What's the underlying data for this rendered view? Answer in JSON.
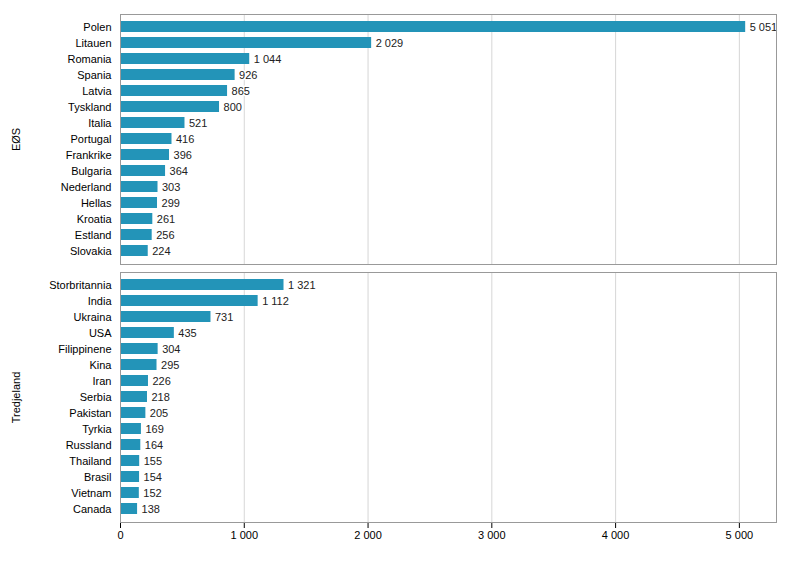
{
  "chart_data": [
    {
      "type": "bar",
      "orientation": "horizontal",
      "ylabel": "EØS",
      "categories": [
        "Polen",
        "Litauen",
        "Romania",
        "Spania",
        "Latvia",
        "Tyskland",
        "Italia",
        "Portugal",
        "Frankrike",
        "Bulgaria",
        "Nederland",
        "Hellas",
        "Kroatia",
        "Estland",
        "Slovakia"
      ],
      "values": [
        5051,
        2029,
        1044,
        926,
        865,
        800,
        521,
        416,
        396,
        364,
        303,
        299,
        261,
        256,
        224
      ],
      "value_labels": [
        "5 051",
        "2 029",
        "1 044",
        "926",
        "865",
        "800",
        "521",
        "416",
        "396",
        "364",
        "303",
        "299",
        "261",
        "256",
        "224"
      ],
      "color": "#2394b8",
      "xlim": [
        0,
        5300
      ],
      "xticks": [
        0,
        {
          "value": 1000,
          "label": "1 000"
        },
        {
          "value": 2000,
          "label": "2 000"
        },
        {
          "value": 3000,
          "label": "3 000"
        },
        {
          "value": 4000,
          "label": "4 000"
        },
        {
          "value": 5000,
          "label": "5 000"
        }
      ],
      "grid": true,
      "data_labels": true,
      "tick_labels": "y"
    },
    {
      "type": "bar",
      "orientation": "horizontal",
      "ylabel": "Tredjeland",
      "categories": [
        "Storbritannia",
        "India",
        "Ukraina",
        "USA",
        "Filippinene",
        "Kina",
        "Iran",
        "Serbia",
        "Pakistan",
        "Tyrkia",
        "Russland",
        "Thailand",
        "Brasil",
        "Vietnam",
        "Canada"
      ],
      "values": [
        1321,
        1112,
        731,
        435,
        304,
        295,
        226,
        218,
        205,
        169,
        164,
        155,
        154,
        152,
        138
      ],
      "value_labels": [
        "1 321",
        "1 112",
        "731",
        "435",
        "304",
        "295",
        "226",
        "218",
        "205",
        "169",
        "164",
        "155",
        "154",
        "152",
        "138"
      ],
      "color": "#2394b8",
      "xlim": [
        0,
        5300
      ],
      "xticks": [
        0,
        {
          "value": 1000,
          "label": "1 000"
        },
        {
          "value": 2000,
          "label": "2 000"
        },
        {
          "value": 3000,
          "label": "3 000"
        },
        {
          "value": 4000,
          "label": "4 000"
        },
        {
          "value": 5000,
          "label": "5 000"
        }
      ],
      "grid": true,
      "data_labels": true
    }
  ]
}
